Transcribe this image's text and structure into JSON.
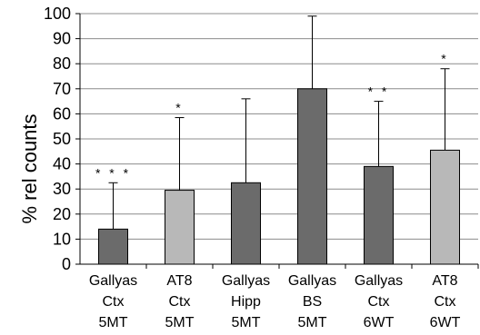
{
  "chart_data": {
    "type": "bar",
    "ylabel": "% rel counts",
    "ylim": [
      0,
      100
    ],
    "yticks": [
      0,
      10,
      20,
      30,
      40,
      50,
      60,
      70,
      80,
      90,
      100
    ],
    "grid": true,
    "categories": [
      [
        "Gallyas",
        "Ctx",
        "5MT"
      ],
      [
        "AT8",
        "Ctx",
        "5MT"
      ],
      [
        "Gallyas",
        "Hipp",
        "5MT"
      ],
      [
        "Gallyas",
        "BS",
        "5MT"
      ],
      [
        "Gallyas",
        "Ctx",
        "6WT"
      ],
      [
        "AT8",
        "Ctx",
        "6WT"
      ]
    ],
    "values": [
      14,
      29.5,
      32.5,
      70,
      39,
      45.5
    ],
    "error_upper": [
      32.5,
      58.5,
      66,
      99,
      65,
      78
    ],
    "significance": [
      "* * *",
      "*",
      "",
      "",
      "* *",
      "*"
    ],
    "bar_colors": [
      "#6b6b6b",
      "#b8b8b8",
      "#6b6b6b",
      "#6b6b6b",
      "#6b6b6b",
      "#b8b8b8"
    ]
  }
}
